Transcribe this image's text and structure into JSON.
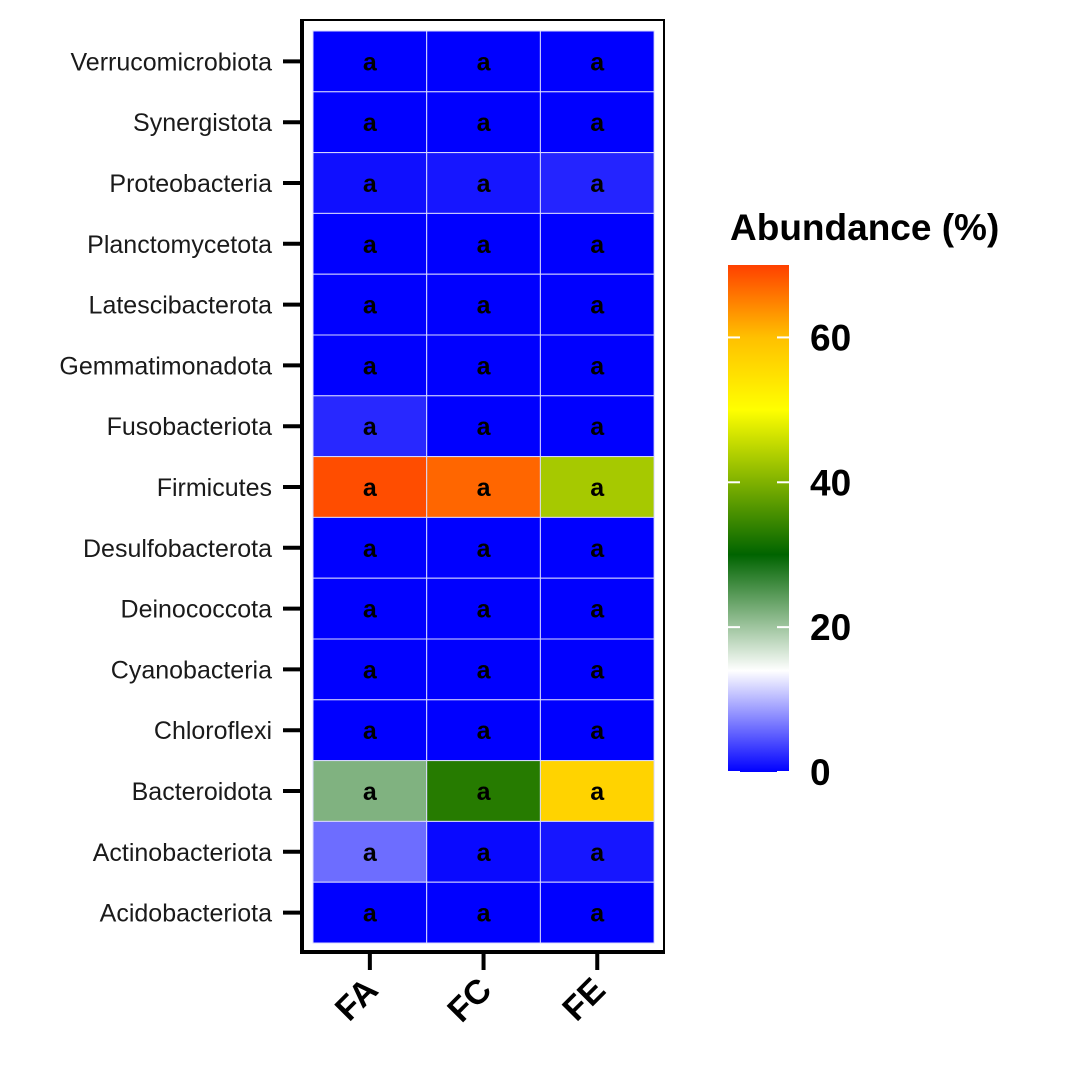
{
  "chart_data": {
    "type": "heatmap",
    "title": "",
    "xlabel": "",
    "ylabel": "",
    "x": [
      "FA",
      "FC",
      "FE"
    ],
    "y": [
      "Verrucomicrobiota",
      "Synergistota",
      "Proteobacteria",
      "Planctomycetota",
      "Latescibacterota",
      "Gemmatimonadota",
      "Fusobacteriota",
      "Firmicutes",
      "Desulfobacterota",
      "Deinococcota",
      "Cyanobacteria",
      "Chloroflexi",
      "Bacteroidota",
      "Actinobacteriota",
      "Acidobacteriota"
    ],
    "values": [
      [
        0.0,
        0.0,
        0.0
      ],
      [
        0.0,
        0.0,
        0.0
      ],
      [
        0.8,
        1.2,
        2.0
      ],
      [
        0.0,
        0.0,
        0.0
      ],
      [
        0.0,
        0.0,
        0.0
      ],
      [
        0.0,
        0.0,
        0.0
      ],
      [
        2.2,
        0.0,
        0.0
      ],
      [
        69.0,
        67.0,
        43.0
      ],
      [
        0.0,
        0.0,
        0.0
      ],
      [
        0.0,
        0.0,
        0.0
      ],
      [
        0.0,
        0.0,
        0.0
      ],
      [
        0.0,
        0.0,
        0.0
      ],
      [
        22.0,
        33.0,
        57.0
      ],
      [
        6.0,
        0.5,
        1.2
      ],
      [
        0.0,
        0.0,
        0.0
      ]
    ],
    "cell_labels": [
      [
        "a",
        "a",
        "a"
      ],
      [
        "a",
        "a",
        "a"
      ],
      [
        "a",
        "a",
        "a"
      ],
      [
        "a",
        "a",
        "a"
      ],
      [
        "a",
        "a",
        "a"
      ],
      [
        "a",
        "a",
        "a"
      ],
      [
        "a",
        "a",
        "a"
      ],
      [
        "a",
        "a",
        "a"
      ],
      [
        "a",
        "a",
        "a"
      ],
      [
        "a",
        "a",
        "a"
      ],
      [
        "a",
        "a",
        "a"
      ],
      [
        "a",
        "a",
        "a"
      ],
      [
        "a",
        "a",
        "a"
      ],
      [
        "a",
        "a",
        "a"
      ],
      [
        "a",
        "a",
        "a"
      ]
    ],
    "legend": {
      "title": "Abundance (%)",
      "placement": "right",
      "range": [
        0,
        70
      ],
      "ticks": [
        0,
        20,
        40,
        60
      ],
      "tick_labels": [
        "0",
        "20",
        "40",
        "60"
      ],
      "color_stops": [
        {
          "value": 0,
          "color": "#0000ff"
        },
        {
          "value": 14,
          "color": "#ffffff"
        },
        {
          "value": 30,
          "color": "#006400"
        },
        {
          "value": 50,
          "color": "#ffff00"
        },
        {
          "value": 60,
          "color": "#ffc000"
        },
        {
          "value": 70,
          "color": "#ff4000"
        }
      ]
    },
    "grid": false
  }
}
